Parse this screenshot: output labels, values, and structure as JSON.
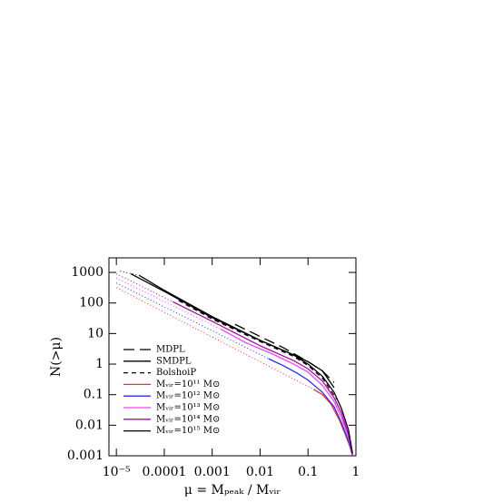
{
  "chart_data": {
    "type": "line",
    "xlabel": "μ = Mₚₑₐₖ / Mᵥᵢᵣ",
    "ylabel": "N(>μ)",
    "xscale": "log",
    "yscale": "log",
    "xlim": [
      7e-06,
      1
    ],
    "ylim": [
      0.001,
      3000
    ],
    "xticks": [
      {
        "value": 1e-05,
        "label": "10⁻⁵"
      },
      0.0001,
      0.001,
      0.01,
      0.1,
      1
    ],
    "yticks": [
      1000,
      100,
      10,
      1,
      0.1,
      0.01,
      0.001
    ],
    "legend": "lower-left",
    "series": [
      {
        "name": "MDPL",
        "color": "#000000",
        "dash": "long",
        "x": [
          0.003,
          0.01,
          0.03,
          0.1,
          0.2,
          0.35
        ],
        "values": [
          20,
          8,
          3.5,
          1.2,
          0.6,
          0.25
        ]
      },
      {
        "name": "SMDPL",
        "color": "#000000",
        "dash": "solid",
        "x": [
          2e-05,
          0.0001,
          0.001,
          0.01,
          0.05,
          0.1,
          0.2,
          0.35
        ],
        "values": [
          900,
          240,
          33,
          6,
          2,
          1.2,
          0.6,
          0.17
        ]
      },
      {
        "name": "BolshoiP",
        "color": "#000000",
        "dash": "short",
        "x": [
          0.0002,
          0.001,
          0.01,
          0.05,
          0.1,
          0.2,
          0.4
        ],
        "values": [
          120,
          30,
          5.5,
          1.8,
          0.9,
          0.35,
          0.07
        ]
      },
      {
        "name": "Mᵥᵢᵣ=10¹¹ M⊙",
        "color": "#ff3030",
        "dash": "solid",
        "x": [
          0.13,
          0.2,
          0.3,
          0.45,
          0.6,
          0.75,
          0.85
        ],
        "values": [
          0.15,
          0.1,
          0.05,
          0.015,
          0.005,
          0.002,
          0.001
        ]
      },
      {
        "name": "Mᵥᵢᵣ=10¹² M⊙",
        "color": "#2030ff",
        "dash": "solid",
        "x": [
          0.015,
          0.03,
          0.06,
          0.1,
          0.2,
          0.35,
          0.5,
          0.7,
          0.85
        ],
        "values": [
          1.5,
          0.9,
          0.5,
          0.3,
          0.12,
          0.04,
          0.012,
          0.003,
          0.001
        ]
      },
      {
        "name": "Mᵥᵢᵣ=10¹³ M⊙",
        "color": "#ff40ff",
        "dash": "solid",
        "x": [
          0.0015,
          0.005,
          0.02,
          0.05,
          0.1,
          0.2,
          0.35,
          0.5,
          0.7,
          0.85
        ],
        "values": [
          14,
          5,
          2,
          1,
          0.55,
          0.2,
          0.06,
          0.018,
          0.004,
          0.001
        ]
      },
      {
        "name": "Mᵥᵢᵣ=10¹⁴ M⊙",
        "color": "#a0109a",
        "dash": "solid",
        "x": [
          0.00015,
          0.001,
          0.01,
          0.05,
          0.1,
          0.2,
          0.35,
          0.5,
          0.7,
          0.85
        ],
        "values": [
          110,
          25,
          4,
          1.3,
          0.7,
          0.28,
          0.08,
          0.025,
          0.005,
          0.001
        ]
      },
      {
        "name": "Mᵥᵢᵣ=10¹⁵ M⊙",
        "color": "#000000",
        "dash": "solid",
        "x": [
          3e-05,
          0.0001,
          0.001,
          0.01,
          0.05,
          0.1,
          0.2,
          0.35,
          0.5,
          0.7,
          0.85
        ],
        "values": [
          800,
          260,
          36,
          6,
          2,
          1,
          0.4,
          0.12,
          0.035,
          0.007,
          0.0012
        ]
      },
      {
        "color": "#ff3030",
        "dash": "dotted",
        "x": [
          1e-05,
          0.13
        ],
        "values": [
          320,
          0.15
        ]
      },
      {
        "color": "#2030ff",
        "dash": "dotted",
        "x": [
          1e-05,
          0.015
        ],
        "values": [
          450,
          1.5
        ]
      },
      {
        "color": "#ff40ff",
        "dash": "dotted",
        "x": [
          1e-05,
          0.0015
        ],
        "values": [
          650,
          14
        ]
      },
      {
        "color": "#a0109a",
        "dash": "dotted",
        "x": [
          1e-05,
          0.00015
        ],
        "values": [
          900,
          110
        ]
      },
      {
        "color": "#000000",
        "dash": "dotted",
        "x": [
          1.2e-05,
          3e-05
        ],
        "values": [
          1100,
          800
        ]
      }
    ]
  }
}
